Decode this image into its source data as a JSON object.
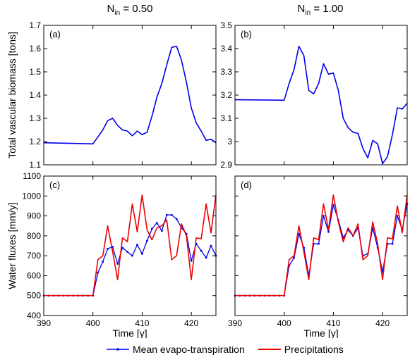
{
  "headers": [
    {
      "main": "N",
      "sub": "in",
      "value": "= 0.50"
    },
    {
      "main": "N",
      "sub": "in",
      "value": "= 1.00"
    }
  ],
  "legend": {
    "et_label": "Mean evapo-transpiration",
    "precip_label": "Precipitations"
  },
  "colors": {
    "et": "#0000ee",
    "precip": "#ee0000"
  },
  "chart_data": [
    {
      "type": "line",
      "panel_label": "(a)",
      "ylabel": "Total vascular biomass [tons]",
      "xlabel": "",
      "xlim": [
        390,
        425
      ],
      "ylim": [
        1.1,
        1.7
      ],
      "xticks": [
        390,
        400,
        410,
        420
      ],
      "yticks": [
        1.1,
        1.2,
        1.3,
        1.4,
        1.5,
        1.6,
        1.7
      ],
      "yticklabels": [
        "1.1",
        "1.2",
        "1.3",
        "1.4",
        "1.5",
        "1.6",
        "1.7"
      ],
      "series": [
        {
          "color": "#0000ee",
          "marker": "",
          "x": [
            390,
            400,
            401,
            402,
            403,
            404,
            405,
            406,
            407,
            408,
            409,
            410,
            411,
            412,
            413,
            414,
            415,
            416,
            417,
            418,
            419,
            420,
            421,
            422,
            423,
            424,
            425
          ],
          "y": [
            1.195,
            1.19,
            1.22,
            1.25,
            1.29,
            1.3,
            1.27,
            1.25,
            1.245,
            1.225,
            1.245,
            1.23,
            1.24,
            1.31,
            1.39,
            1.45,
            1.53,
            1.605,
            1.61,
            1.55,
            1.455,
            1.345,
            1.28,
            1.245,
            1.205,
            1.21,
            1.195
          ]
        }
      ]
    },
    {
      "type": "line",
      "panel_label": "(b)",
      "ylabel": "",
      "xlabel": "",
      "xlim": [
        390,
        425
      ],
      "ylim": [
        2.9,
        3.5
      ],
      "xticks": [
        390,
        400,
        410,
        420
      ],
      "yticks": [
        2.9,
        3.0,
        3.1,
        3.2,
        3.3,
        3.4,
        3.5
      ],
      "yticklabels": [
        "2.9",
        "3",
        "3.1",
        "3.2",
        "3.3",
        "3.4",
        "3.5"
      ],
      "series": [
        {
          "color": "#0000ee",
          "marker": "",
          "x": [
            390,
            400,
            401,
            402,
            403,
            404,
            405,
            406,
            407,
            408,
            409,
            410,
            411,
            412,
            413,
            414,
            415,
            416,
            417,
            418,
            419,
            420,
            421,
            422,
            423,
            424,
            425
          ],
          "y": [
            3.18,
            3.178,
            3.25,
            3.31,
            3.41,
            3.37,
            3.22,
            3.205,
            3.25,
            3.335,
            3.29,
            3.295,
            3.22,
            3.1,
            3.06,
            3.04,
            3.035,
            2.97,
            2.93,
            3.005,
            2.99,
            2.905,
            2.935,
            3.03,
            3.145,
            3.14,
            3.165
          ]
        }
      ]
    },
    {
      "type": "line",
      "panel_label": "(c)",
      "ylabel": "Water fluxes [mm/y]",
      "xlabel": "Time [y]",
      "xlim": [
        390,
        425
      ],
      "ylim": [
        400,
        1100
      ],
      "xticks": [
        390,
        400,
        410,
        420
      ],
      "xticklabels": [
        "390",
        "400",
        "410",
        "420"
      ],
      "yticks": [
        400,
        500,
        600,
        700,
        800,
        900,
        1000,
        1100
      ],
      "yticklabels": [
        "400",
        "500",
        "600",
        "700",
        "800",
        "900",
        "1000",
        "1100"
      ],
      "series": [
        {
          "color": "#0000ee",
          "marker": "dot",
          "x": [
            390,
            391,
            392,
            393,
            394,
            395,
            396,
            397,
            398,
            399,
            400,
            401,
            402,
            403,
            404,
            405,
            406,
            407,
            408,
            409,
            410,
            411,
            412,
            413,
            414,
            415,
            416,
            417,
            418,
            419,
            420,
            421,
            422,
            423,
            424,
            425
          ],
          "y": [
            500,
            500,
            500,
            500,
            500,
            500,
            500,
            500,
            500,
            500,
            500,
            615,
            670,
            735,
            745,
            660,
            740,
            720,
            700,
            755,
            710,
            775,
            835,
            865,
            825,
            905,
            905,
            885,
            840,
            810,
            675,
            760,
            725,
            690,
            750,
            700
          ]
        },
        {
          "color": "#ee0000",
          "marker": "",
          "x": [
            390,
            391,
            392,
            393,
            394,
            395,
            396,
            397,
            398,
            399,
            400,
            401,
            402,
            403,
            404,
            405,
            406,
            407,
            408,
            409,
            410,
            411,
            412,
            413,
            414,
            415,
            416,
            417,
            418,
            419,
            420,
            421,
            422,
            423,
            424,
            425
          ],
          "y": [
            500,
            500,
            500,
            500,
            500,
            500,
            500,
            500,
            500,
            500,
            500,
            680,
            700,
            850,
            720,
            580,
            790,
            770,
            960,
            820,
            1005,
            830,
            780,
            840,
            850,
            880,
            680,
            700,
            860,
            800,
            580,
            790,
            785,
            960,
            815,
            1005
          ]
        }
      ]
    },
    {
      "type": "line",
      "panel_label": "(d)",
      "ylabel": "",
      "xlabel": "Time [y]",
      "xlim": [
        390,
        425
      ],
      "ylim": [
        400,
        1100
      ],
      "xticks": [
        390,
        400,
        410,
        420
      ],
      "xticklabels": [
        "390",
        "400",
        "410",
        "420"
      ],
      "yticks": [
        400,
        500,
        600,
        700,
        800,
        900,
        1000,
        1100
      ],
      "yticklabels": [],
      "series": [
        {
          "color": "#0000ee",
          "marker": "dot",
          "x": [
            390,
            391,
            392,
            393,
            394,
            395,
            396,
            397,
            398,
            399,
            400,
            401,
            402,
            403,
            404,
            405,
            406,
            407,
            408,
            409,
            410,
            411,
            412,
            413,
            414,
            415,
            416,
            417,
            418,
            419,
            420,
            421,
            422,
            423,
            424,
            425
          ],
          "y": [
            500,
            500,
            500,
            500,
            500,
            500,
            500,
            500,
            500,
            500,
            500,
            650,
            690,
            810,
            740,
            600,
            760,
            760,
            900,
            820,
            955,
            880,
            790,
            830,
            800,
            840,
            700,
            710,
            840,
            740,
            620,
            760,
            760,
            900,
            830,
            960
          ]
        },
        {
          "color": "#ee0000",
          "marker": "",
          "x": [
            390,
            391,
            392,
            393,
            394,
            395,
            396,
            397,
            398,
            399,
            400,
            401,
            402,
            403,
            404,
            405,
            406,
            407,
            408,
            409,
            410,
            411,
            412,
            413,
            414,
            415,
            416,
            417,
            418,
            419,
            420,
            421,
            422,
            423,
            424,
            425
          ],
          "y": [
            500,
            500,
            500,
            500,
            500,
            500,
            500,
            500,
            500,
            500,
            500,
            680,
            700,
            850,
            720,
            580,
            790,
            780,
            960,
            830,
            1005,
            870,
            770,
            840,
            800,
            860,
            680,
            700,
            870,
            760,
            580,
            790,
            785,
            950,
            815,
            1005
          ]
        }
      ]
    }
  ]
}
